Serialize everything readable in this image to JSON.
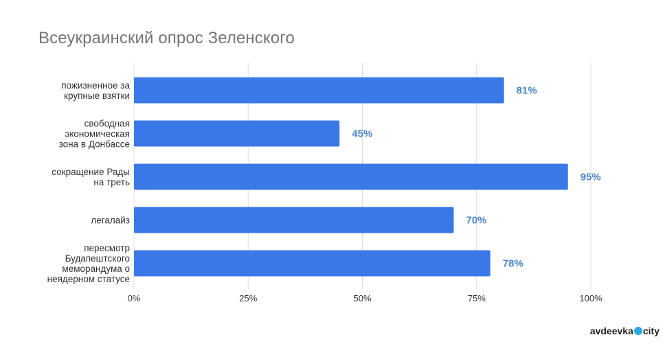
{
  "chart_data": {
    "type": "bar",
    "orientation": "horizontal",
    "title": "Всеукраинский опрос Зеленского",
    "categories": [
      [
        "пожизненное за",
        "крупные взятки"
      ],
      [
        "свободная",
        "экономическая",
        "зона в Донбассе"
      ],
      [
        "сокращение Рады",
        "на треть"
      ],
      [
        "легалайз"
      ],
      [
        "пересмотр",
        "Будапештского",
        "меморандума о",
        "неядерном статусе"
      ]
    ],
    "values": [
      81,
      45,
      95,
      70,
      78
    ],
    "data_labels": [
      "81%",
      "45%",
      "95%",
      "70%",
      "78%"
    ],
    "xlim": [
      0,
      100
    ],
    "xticks": [
      0,
      25,
      50,
      75,
      100
    ],
    "xtick_labels": [
      "0%",
      "25%",
      "50%",
      "75%",
      "100%"
    ],
    "grid": "vertical",
    "bar_color": "#3b78e7",
    "label_color": "#4a86c8",
    "grid_color": "#dddddd"
  },
  "watermark": {
    "prefix": "avdeevka",
    "suffix": "city",
    "dot_color": "#2aa8e0"
  }
}
